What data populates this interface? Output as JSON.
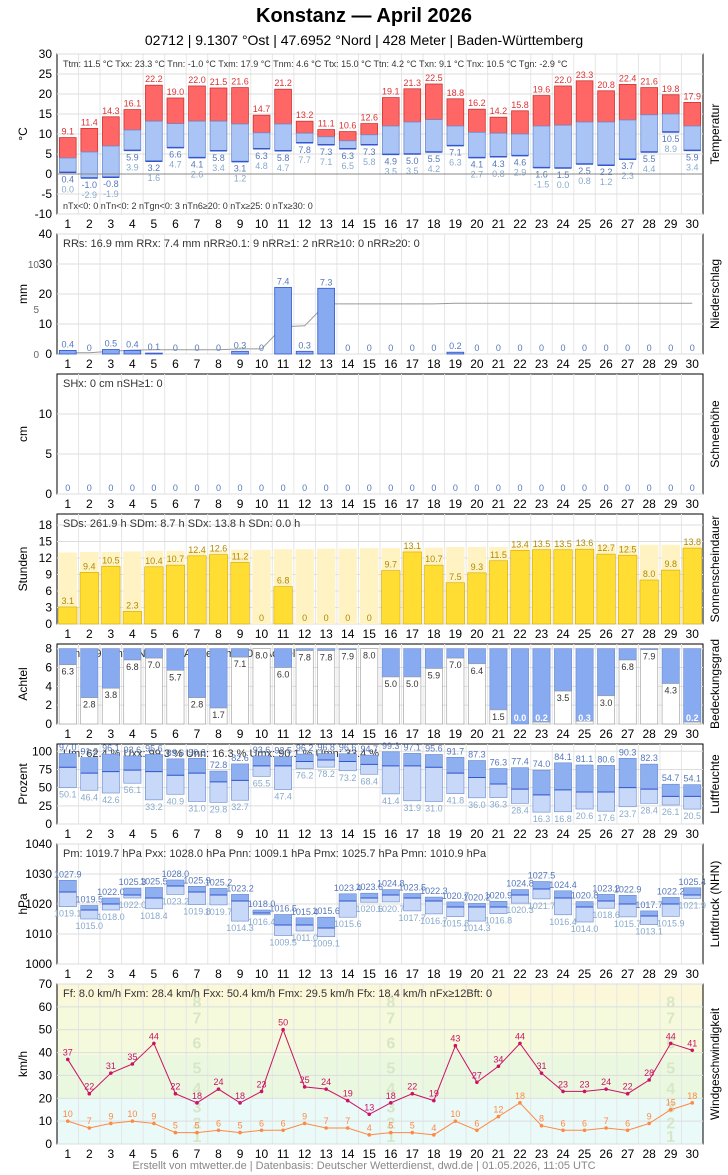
{
  "title": "Konstanz  —  April 2026",
  "subtitle": "02712  |  9.1307 °Ost  |  47.6952 °Nord  |  428 Meter  |  Baden-Württemberg",
  "footer": "Erstellt von mtwetter.de | Datenbasis: Deutscher Wetterdienst, dwd.de | 01.05.2026, 11:05 UTC",
  "days": [
    1,
    2,
    3,
    4,
    5,
    6,
    7,
    8,
    9,
    10,
    11,
    12,
    13,
    14,
    15,
    16,
    17,
    18,
    19,
    20,
    21,
    22,
    23,
    24,
    25,
    26,
    27,
    28,
    29,
    30
  ],
  "colors": {
    "tmax": "#ff6666",
    "tmean": "#a9c4f5",
    "tmin_label": "#7aa0d8",
    "tmax_label": "#d33",
    "precip": "#88aaf0",
    "sun": "#ffdd33",
    "sun_bg": "#fff3c4",
    "cloud": "#88aaf0",
    "wind": "#cc1166",
    "gust_line": "#cc1166",
    "fx_line": "#ff8844"
  },
  "chart_data": [
    {
      "type": "bar",
      "panel": "Temperatur",
      "ylabel": "°C",
      "ylim": [
        -10,
        30
      ],
      "yticks": [
        -10,
        -5,
        0,
        5,
        10,
        15,
        20,
        25,
        30
      ],
      "stats_top": [
        "Ttm: 11.5 °C",
        "Txx: 23.3 °C",
        "Tnn: -1.0 °C",
        "Txm: 17.9 °C",
        "Tnm: 4.6 °C",
        "Ttx: 15.0 °C",
        "Ttn: 4.2 °C",
        "Txn: 9.1 °C",
        "Tnx: 10.5 °C",
        "Tgn: -2.9 °C"
      ],
      "stats_bottom": [
        "nTx<0: 0",
        "nTn<0: 2",
        "nTgn<0: 3",
        "nTn6≥20: 0",
        "nTx≥25: 0",
        "nTx≥30: 0"
      ],
      "series": [
        {
          "name": "Tmax",
          "values": [
            9.1,
            11.4,
            14.3,
            16.1,
            22.2,
            19.0,
            22.0,
            21.5,
            21.6,
            14.7,
            21.2,
            13.2,
            11.1,
            10.6,
            12.6,
            19.1,
            21.3,
            22.5,
            18.8,
            16.2,
            14.2,
            15.8,
            19.6,
            22.0,
            23.3,
            20.8,
            22.4,
            21.6,
            19.8,
            17.9
          ]
        },
        {
          "name": "Tmean",
          "values": [
            4.0,
            5.5,
            7.0,
            11.0,
            13.2,
            12.6,
            13.2,
            13.2,
            12.5,
            10.3,
            12.5,
            10.2,
            9.3,
            8.3,
            9.8,
            12.0,
            13.0,
            13.6,
            12.0,
            10.4,
            10.2,
            10.0,
            12.0,
            12.2,
            13.0,
            13.0,
            13.5,
            14.8,
            15.0,
            12.0
          ]
        },
        {
          "name": "Tmin",
          "values": [
            0.4,
            -1.0,
            -0.8,
            5.9,
            3.2,
            6.6,
            4.1,
            5.8,
            3.1,
            6.3,
            5.8,
            7.8,
            7.3,
            6.3,
            7.3,
            4.9,
            5.0,
            5.5,
            7.1,
            4.1,
            4.3,
            4.6,
            1.6,
            1.5,
            2.5,
            2.2,
            3.7,
            5.5,
            10.5,
            5.9
          ]
        },
        {
          "name": "Tground",
          "values": [
            0.0,
            -2.9,
            -1.9,
            3.9,
            1.6,
            4.7,
            2.6,
            3.4,
            1.2,
            4.8,
            4.7,
            7.7,
            7.1,
            6.5,
            5.8,
            3.5,
            3.5,
            4.2,
            6.3,
            2.7,
            0.8,
            2.9,
            -1.5,
            0.0,
            0.8,
            1.2,
            2.3,
            4.4,
            8.9,
            3.4
          ]
        }
      ]
    },
    {
      "type": "bar",
      "panel": "Niederschlag",
      "ylabel": "mm",
      "ylim": [
        0,
        40
      ],
      "yticks": [
        0,
        10,
        20,
        30,
        40
      ],
      "yticks_right": [
        0,
        5,
        10
      ],
      "stats_top": [
        "RRs: 16.9 mm",
        "RRx: 7.4 mm",
        "nRR≥0.1: 9",
        "nRR≥1: 2",
        "nRR≥10: 0",
        "nRR≥20: 0"
      ],
      "values": [
        0.4,
        0,
        0.5,
        0.4,
        0.1,
        0,
        0,
        0,
        0.3,
        0,
        7.4,
        0.3,
        7.3,
        0,
        0,
        0,
        0,
        0,
        0.2,
        0,
        0,
        0,
        0,
        0,
        0,
        0,
        0,
        0,
        0,
        0
      ],
      "cumulative": [
        0.4,
        0.4,
        0.9,
        1.3,
        1.4,
        1.4,
        1.4,
        1.4,
        1.7,
        1.7,
        9.1,
        9.4,
        16.7,
        16.7,
        16.7,
        16.7,
        16.7,
        16.7,
        16.9,
        16.9,
        16.9,
        16.9,
        16.9,
        16.9,
        16.9,
        16.9,
        16.9,
        16.9,
        16.9,
        16.9
      ]
    },
    {
      "type": "bar",
      "panel": "Schneehöhe",
      "ylabel": "cm",
      "ylim": [
        0,
        15
      ],
      "yticks": [
        0,
        5,
        10
      ],
      "stats_top": [
        "SHx: 0 cm",
        "nSH≥1: 0"
      ],
      "values": [
        0,
        0,
        0,
        0,
        0,
        0,
        0,
        0,
        0,
        0,
        0,
        0,
        0,
        0,
        0,
        0,
        0,
        0,
        0,
        0,
        0,
        0,
        0,
        0,
        0,
        0,
        0,
        0,
        0,
        0
      ]
    },
    {
      "type": "bar",
      "panel": "Sonnenscheindauer",
      "ylabel": "Stunden",
      "ylim": [
        0,
        20
      ],
      "yticks": [
        0,
        3,
        6,
        9,
        12,
        15,
        18
      ],
      "stats_top": [
        "SDs: 261.9 h",
        "SDm: 8.7 h",
        "SDx: 13.8 h",
        "SDn: 0.0 h"
      ],
      "possible": [
        13.0,
        13.1,
        13.1,
        13.2,
        13.3,
        13.3,
        13.4,
        13.4,
        13.5,
        13.5,
        13.6,
        13.6,
        13.7,
        13.7,
        13.8,
        13.8,
        13.9,
        13.9,
        14.0,
        14.0,
        14.0,
        14.1,
        14.1,
        14.2,
        14.2,
        14.3,
        14.3,
        14.4,
        14.4,
        14.5
      ],
      "values": [
        3.1,
        9.4,
        10.5,
        2.3,
        10.4,
        10.7,
        12.4,
        12.6,
        11.2,
        0,
        6.8,
        0,
        0,
        0,
        0,
        9.7,
        13.1,
        10.7,
        7.5,
        9.3,
        11.5,
        13.4,
        13.5,
        13.5,
        13.6,
        12.7,
        12.5,
        8.0,
        9.8,
        13.8
      ]
    },
    {
      "type": "bar",
      "panel": "Bedeckungsgrad",
      "ylabel": "Achtel",
      "ylim": [
        0,
        8.5
      ],
      "yticks": [
        0,
        2,
        4,
        6,
        8
      ],
      "stats_top": [
        "Nm: 4.9 Achtel",
        "Nmx: 8.0 Achtel",
        "Nmn: 0.0 Achtel"
      ],
      "values": [
        6.3,
        2.8,
        3.8,
        6.8,
        7.0,
        5.7,
        2.8,
        1.7,
        7.1,
        8.0,
        6.0,
        7.8,
        7.8,
        7.9,
        8.0,
        5.0,
        5.0,
        5.9,
        7.0,
        6.4,
        1.5,
        0.0,
        0.2,
        3.5,
        0.3,
        3.0,
        6.8,
        7.9,
        4.3,
        0.2
      ]
    },
    {
      "type": "bar",
      "panel": "Luftfeuchte",
      "ylabel": "Prozent",
      "ylim": [
        0,
        110
      ],
      "yticks": [
        0,
        25,
        50,
        75,
        100
      ],
      "stats_top": [
        "Um: 62.4 %",
        "Uxx: 99.3 %",
        "Unn: 16.3 %",
        "Umx: 90.1 %",
        "Umn: 33.4 %"
      ],
      "series": [
        {
          "name": "Umax",
          "values": [
            97.0,
            91.2,
            96.1,
            93.6,
            95.6,
            89.6,
            90.3,
            72.8,
            82.6,
            93.6,
            92.5,
            96.2,
            96.8,
            96.6,
            94.7,
            99.3,
            97.1,
            95.6,
            91.7,
            87.3,
            76.3,
            77.4,
            74.0,
            84.1,
            81.1,
            80.6,
            90.3,
            82.3,
            54.7,
            54.1
          ]
        },
        {
          "name": "Umean",
          "values": [
            78,
            70,
            72,
            74,
            72,
            67,
            70,
            58,
            60,
            80,
            80,
            86,
            88,
            86,
            82,
            80,
            80,
            78,
            70,
            64,
            55,
            48,
            40,
            47,
            44,
            44,
            50,
            48,
            38,
            38
          ]
        },
        {
          "name": "Umin",
          "values": [
            50.1,
            46.4,
            42.6,
            56.1,
            33.2,
            40.9,
            31.0,
            29.8,
            32.7,
            65.5,
            47.4,
            76.2,
            78.2,
            73.2,
            68.4,
            41.4,
            31.9,
            31.0,
            41.8,
            36.0,
            36.3,
            28.4,
            16.3,
            16.8,
            20.6,
            17.6,
            23.7,
            28.4,
            26.1,
            20.5
          ]
        }
      ]
    },
    {
      "type": "bar",
      "panel": "Luftdruck (NHN)",
      "ylabel": "hPa",
      "ylim": [
        1000,
        1040
      ],
      "yticks": [
        1000,
        1010,
        1020,
        1030,
        1040
      ],
      "stats_top": [
        "Pm: 1019.7 hPa",
        "Pxx: 1028.0 hPa",
        "Pnn: 1009.1 hPa",
        "Pmx: 1025.7 hPa",
        "Pmn: 1010.9 hPa"
      ],
      "series": [
        {
          "name": "Pmax",
          "values": [
            1027.9,
            1019.5,
            1022.0,
            1025.3,
            1025.5,
            1028.0,
            1025.9,
            1025.2,
            1023.2,
            1018.0,
            1016.5,
            1015.4,
            1015.6,
            1023.4,
            1023.6,
            1024.8,
            1023.5,
            1022.3,
            1020.7,
            1020.2,
            1020.9,
            1024.8,
            1027.5,
            1024.4,
            1020.8,
            1023.2,
            1022.9,
            1017.7,
            1022.2,
            1025.4
          ]
        },
        {
          "name": "Pmean",
          "values": [
            1024,
            1018,
            1020,
            1023,
            1022,
            1026,
            1024,
            1023,
            1021,
            1017,
            1013,
            1013,
            1012,
            1021,
            1022,
            1023,
            1022,
            1021,
            1019,
            1019,
            1019,
            1023,
            1025,
            1022,
            1019,
            1021,
            1020,
            1016,
            1020,
            1023
          ]
        },
        {
          "name": "Pmin",
          "values": [
            1019.1,
            1015.0,
            1018.0,
            1022.0,
            1018.4,
            1023.2,
            1019.8,
            1019.7,
            1014.3,
            1016.4,
            1009.5,
            1011.0,
            1009.1,
            1015.6,
            1020.6,
            1020.7,
            1017.7,
            1016.7,
            1015.8,
            1014.3,
            1016.8,
            1020.3,
            1021.7,
            1016.4,
            1014.0,
            1018.6,
            1015.7,
            1013.1,
            1015.9,
            1021.9
          ]
        }
      ]
    },
    {
      "type": "line",
      "panel": "Windgeschwindigkeit",
      "ylabel": "km/h",
      "ylim": [
        0,
        70
      ],
      "yticks": [
        0,
        10,
        20,
        30,
        40,
        50,
        60,
        70
      ],
      "bft_labels": [
        "1",
        "2",
        "3",
        "4",
        "5",
        "6",
        "7",
        "8"
      ],
      "stats_top": [
        "Ff: 8.0 km/h",
        "Fxm: 28.4 km/h",
        "Fxx: 50.4 km/h",
        "Fmx: 29.5 km/h",
        "Ffx: 18.4 km/h",
        "nFx≥12Bft: 0"
      ],
      "series": [
        {
          "name": "Fx",
          "values": [
            37,
            22,
            31,
            35,
            44,
            22,
            18,
            24,
            18,
            23,
            50,
            25,
            24,
            19,
            13,
            18,
            22,
            19,
            43,
            27,
            34,
            44,
            31,
            23,
            23,
            24,
            22,
            28,
            44,
            41
          ]
        },
        {
          "name": "Ff",
          "values": [
            10,
            7,
            9,
            10,
            9,
            5,
            5,
            6,
            5,
            6,
            6,
            9,
            7,
            7,
            4,
            5,
            5,
            4,
            10,
            6,
            12,
            18,
            8,
            6,
            6,
            7,
            6,
            9,
            15,
            18
          ]
        }
      ]
    }
  ]
}
